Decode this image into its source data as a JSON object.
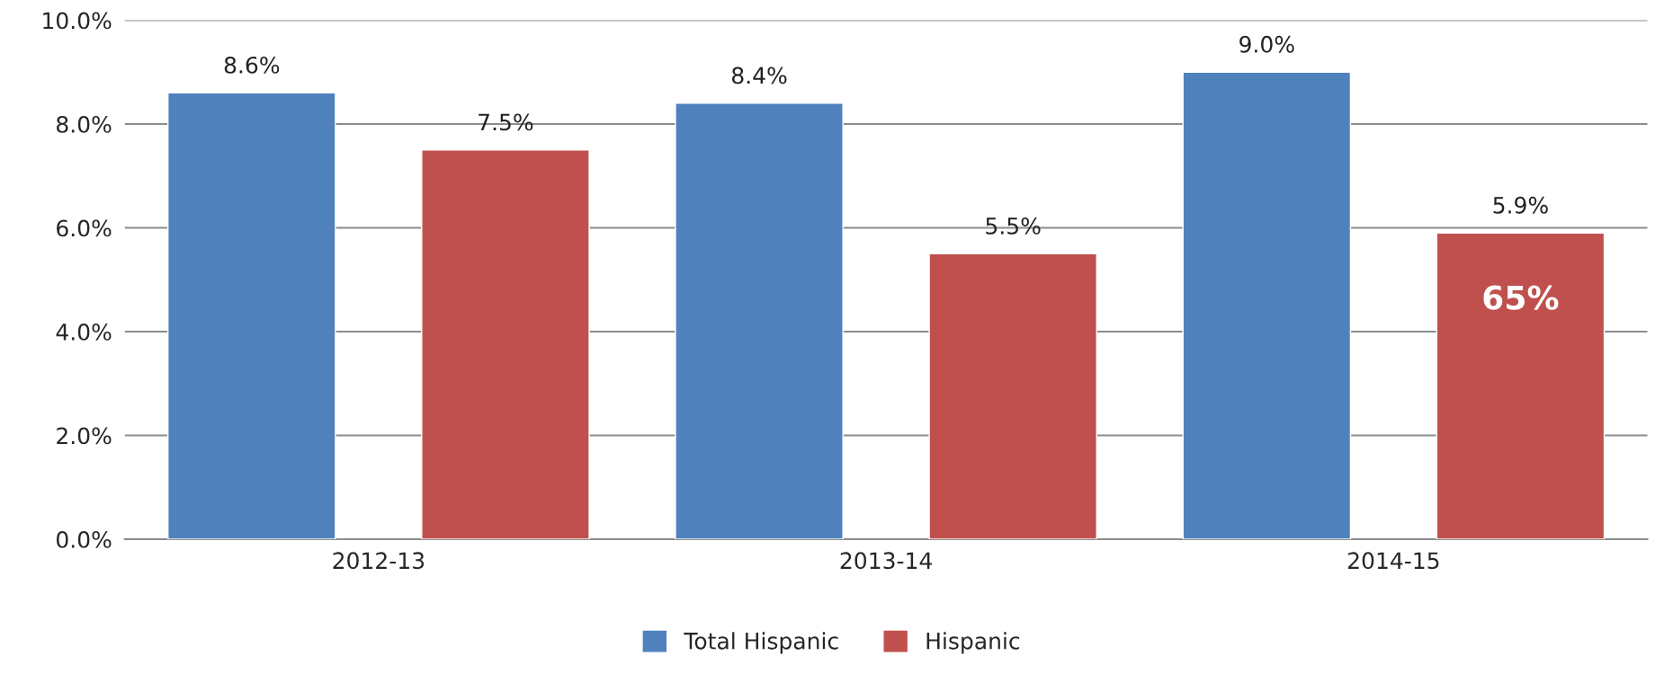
{
  "chart_data": {
    "type": "bar",
    "categories": [
      "2012-13",
      "2013-14",
      "2014-15"
    ],
    "series": [
      {
        "name": "Total Hispanic",
        "color": "#4f81bd",
        "values": [
          8.6,
          8.4,
          9.0
        ],
        "value_labels": [
          "8.6%",
          "8.4%",
          "9.0%"
        ]
      },
      {
        "name": "Hispanic",
        "color": "#c0504d",
        "values": [
          7.5,
          5.5,
          5.9
        ],
        "value_labels": [
          "7.5%",
          "5.5%",
          "5.9%"
        ]
      }
    ],
    "ylim": [
      0,
      10
    ],
    "yticks": [
      {
        "value": 0,
        "label": "0.0%"
      },
      {
        "value": 2,
        "label": "2.0%"
      },
      {
        "value": 4,
        "label": "4.0%"
      },
      {
        "value": 6,
        "label": "6.0%"
      },
      {
        "value": 8,
        "label": "8.0%"
      },
      {
        "value": 10,
        "label": "10.0%"
      }
    ],
    "grid": "y",
    "legend": "bottom",
    "annotations": [
      "65%"
    ]
  }
}
